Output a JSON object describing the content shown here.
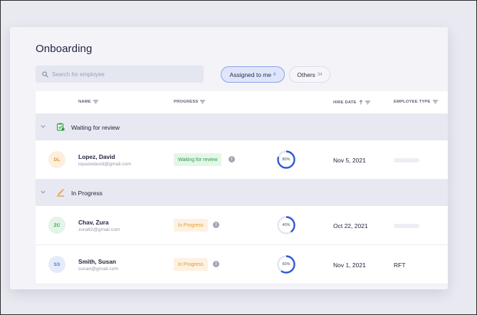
{
  "page": {
    "title": "Onboarding"
  },
  "search": {
    "placeholder": "Search for employee",
    "value": ""
  },
  "filters": [
    {
      "label": "Assigned to me",
      "count": "6",
      "active": true
    },
    {
      "label": "Others",
      "count": "34",
      "active": false
    }
  ],
  "columns": {
    "name": "NAME",
    "progress": "PROGRESS",
    "hire_date": "HIRE DATE",
    "employee_type": "EMPLOYEE TYPE"
  },
  "groups": [
    {
      "label": "Waiting for review",
      "icon": "review-clipboard-icon",
      "rows": [
        {
          "initials": "DL",
          "name": "Lopez, David",
          "email": "lopazedavid@gmail.com",
          "status": "Waiting for review",
          "progress": 80,
          "progress_label": "80%",
          "hire_date": "Nov 5, 2021",
          "employee_type": ""
        }
      ]
    },
    {
      "label": "In Progress",
      "icon": "pencil-icon",
      "rows": [
        {
          "initials": "ZC",
          "name": "Chav, Zura",
          "email": "zura82@gmail.com",
          "status": "In Progress",
          "progress": 40,
          "progress_label": "40%",
          "hire_date": "Oct 22, 2021",
          "employee_type": ""
        },
        {
          "initials": "SS",
          "name": "Smith, Susan",
          "email": "susan@gmail.com",
          "status": "In Progress",
          "progress": 60,
          "progress_label": "60%",
          "hire_date": "Nov 1, 2021",
          "employee_type": "RFT"
        }
      ]
    }
  ],
  "colors": {
    "accent": "#3158d6",
    "avatar_dl_bg": "#fdeedd",
    "avatar_dl_fg": "#e0953a",
    "avatar_zc_bg": "#e3f5e6",
    "avatar_zc_fg": "#2e9a4a",
    "avatar_ss_bg": "#e4ecfb",
    "avatar_ss_fg": "#4f74d6"
  }
}
